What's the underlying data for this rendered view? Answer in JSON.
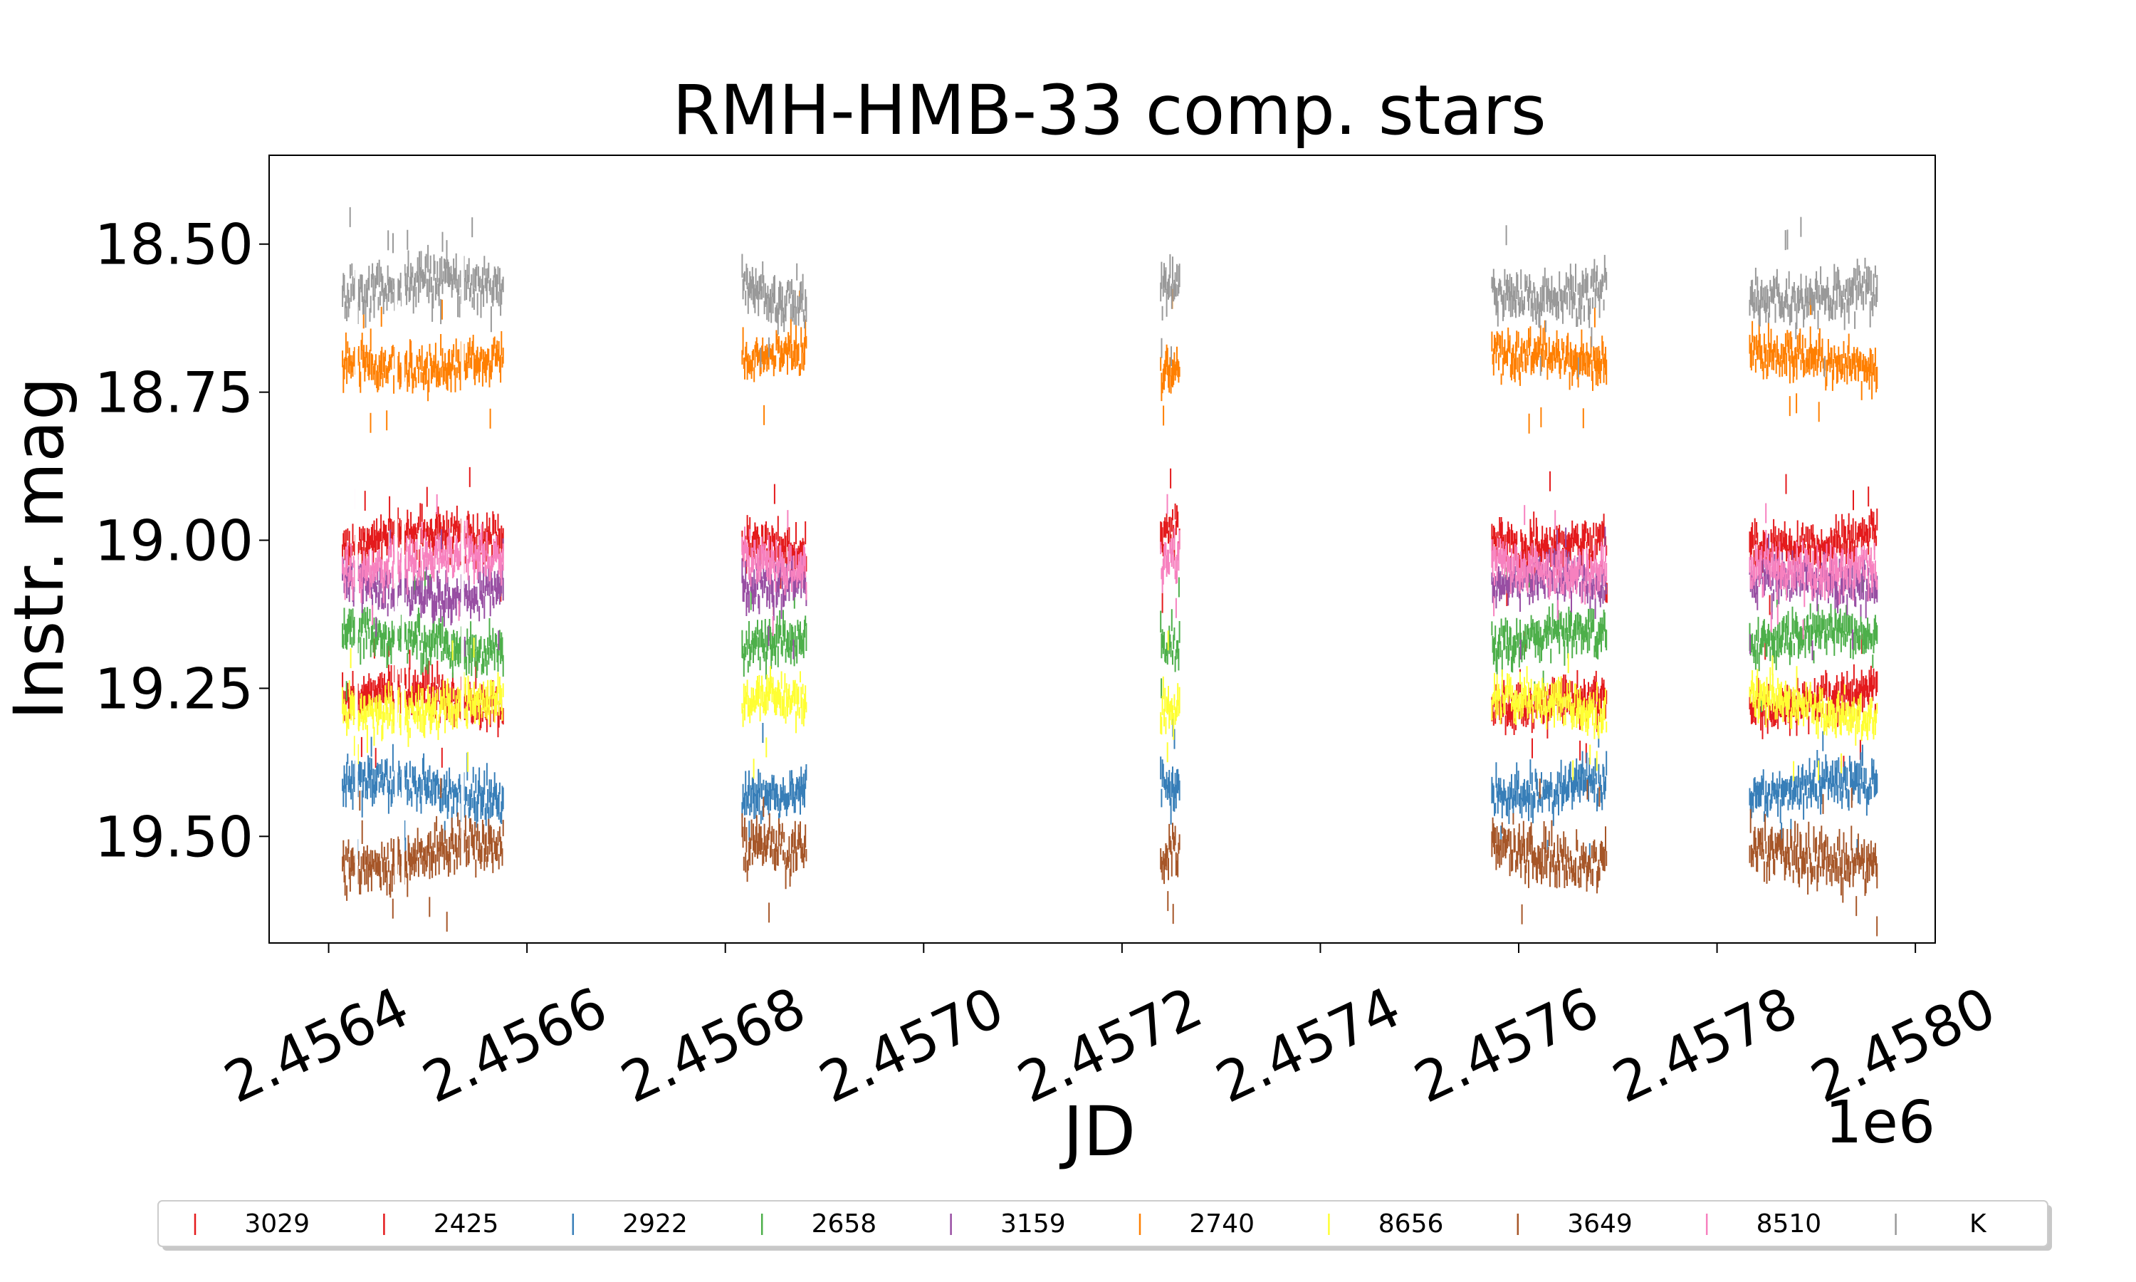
{
  "chart_data": {
    "type": "scatter",
    "title": "RMH-HMB-33 comp. stars",
    "xlabel": "JD",
    "ylabel": "Instr. mag",
    "x_offset_label": "1e6",
    "xlim": [
      2.45634,
      2.45802
    ],
    "ylim": [
      19.68,
      18.35
    ],
    "y_inverted": true,
    "x_ticks": [
      2.4564,
      2.4566,
      2.4568,
      2.457,
      2.4572,
      2.4574,
      2.4576,
      2.4578,
      2.458
    ],
    "x_tick_labels": [
      "2.4564",
      "2.4566",
      "2.4568",
      "2.4570",
      "2.4572",
      "2.4574",
      "2.4576",
      "2.4578",
      "2.4580"
    ],
    "y_ticks": [
      18.5,
      18.75,
      19.0,
      19.25,
      19.5
    ],
    "y_tick_labels": [
      "18.50",
      "18.75",
      "19.00",
      "19.25",
      "19.50"
    ],
    "grid": false,
    "legend_position": "bottom",
    "observing_seasons": [
      {
        "start": 2.456414,
        "end": 2.456576
      },
      {
        "start": 2.456817,
        "end": 2.456882
      },
      {
        "start": 2.457239,
        "end": 2.457258
      },
      {
        "start": 2.457573,
        "end": 2.457689
      },
      {
        "start": 2.457833,
        "end": 2.457962
      }
    ],
    "series": [
      {
        "name": "3029",
        "color": "#e41a1c",
        "mean_mag": 19.0,
        "scatter": 0.03,
        "seasons": [
          0,
          1,
          2,
          3,
          4
        ]
      },
      {
        "name": "2425",
        "color": "#e41a1c",
        "mean_mag": 19.27,
        "scatter": 0.03,
        "seasons": [
          0,
          3,
          4
        ]
      },
      {
        "name": "2922",
        "color": "#377eb8",
        "mean_mag": 19.42,
        "scatter": 0.03,
        "seasons": [
          0,
          1,
          2,
          3,
          4
        ]
      },
      {
        "name": "2658",
        "color": "#4daf4a",
        "mean_mag": 19.17,
        "scatter": 0.03,
        "seasons": [
          0,
          1,
          2,
          3,
          4
        ]
      },
      {
        "name": "3159",
        "color": "#984ea3",
        "mean_mag": 19.08,
        "scatter": 0.03,
        "seasons": [
          0,
          1,
          3,
          4
        ]
      },
      {
        "name": "2740",
        "color": "#ff7f00",
        "mean_mag": 18.7,
        "scatter": 0.03,
        "seasons": [
          0,
          1,
          2,
          3,
          4
        ]
      },
      {
        "name": "8656",
        "color": "#ffff33",
        "mean_mag": 19.28,
        "scatter": 0.03,
        "seasons": [
          0,
          1,
          2,
          3,
          4
        ]
      },
      {
        "name": "3649",
        "color": "#a65628",
        "mean_mag": 19.53,
        "scatter": 0.035,
        "seasons": [
          0,
          1,
          2,
          3,
          4
        ]
      },
      {
        "name": "8510",
        "color": "#f781bf",
        "mean_mag": 19.04,
        "scatter": 0.03,
        "seasons": [
          0,
          1,
          2,
          3,
          4
        ]
      },
      {
        "name": "K",
        "color": "#999999",
        "mean_mag": 18.58,
        "scatter": 0.035,
        "seasons": [
          0,
          1,
          2,
          3,
          4
        ]
      }
    ]
  }
}
